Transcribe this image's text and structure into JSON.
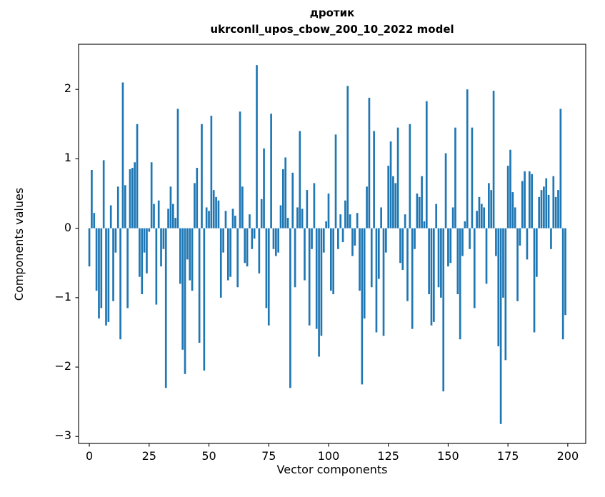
{
  "title_line1": "дротик",
  "title_line2": "ukrconll_upos_cbow_200_10_2022 model",
  "chart_data": {
    "type": "bar",
    "title": "дротик",
    "subtitle": "ukrconll_upos_cbow_200_10_2022 model",
    "xlabel": "Vector components",
    "ylabel": "Components values",
    "x_ticks": [
      0,
      25,
      50,
      75,
      100,
      125,
      150,
      175,
      200
    ],
    "y_ticks": [
      2,
      1,
      0,
      -1,
      -2,
      -3
    ],
    "xlim": [
      -4.5,
      207.5
    ],
    "ylim": [
      -3.1,
      2.65
    ],
    "grid": false,
    "legend": "none",
    "bar_color": "#1f77b4",
    "axis_color": "#000000",
    "n_components": 200,
    "values": [
      -0.55,
      0.84,
      0.22,
      -0.9,
      -1.3,
      -1.15,
      0.98,
      -1.4,
      -1.35,
      0.33,
      -1.05,
      -0.35,
      0.6,
      -1.6,
      2.1,
      0.62,
      -1.15,
      0.85,
      0.87,
      0.95,
      1.5,
      -0.7,
      -0.95,
      -0.35,
      -0.65,
      -0.05,
      0.95,
      0.35,
      -1.1,
      0.4,
      -0.55,
      -0.3,
      -2.3,
      0.28,
      0.6,
      0.35,
      0.15,
      1.72,
      -0.8,
      -1.75,
      -2.1,
      -0.45,
      -0.75,
      -0.9,
      0.65,
      0.87,
      -1.65,
      1.5,
      -2.05,
      0.3,
      0.25,
      1.62,
      0.55,
      0.45,
      0.4,
      -1.0,
      -0.35,
      0.25,
      -0.75,
      -0.7,
      0.28,
      0.18,
      -0.85,
      1.68,
      0.6,
      -0.5,
      -0.55,
      0.2,
      -0.3,
      -0.15,
      2.35,
      -0.65,
      0.42,
      1.15,
      -1.15,
      -1.4,
      1.65,
      -0.3,
      -0.4,
      -0.35,
      0.33,
      0.85,
      1.02,
      0.15,
      -2.3,
      0.8,
      -0.85,
      0.3,
      1.4,
      0.28,
      -0.75,
      0.55,
      -1.4,
      -0.3,
      0.65,
      -1.45,
      -1.85,
      -1.55,
      -0.35,
      0.1,
      0.5,
      -0.9,
      -0.95,
      1.35,
      -0.3,
      0.2,
      -0.2,
      0.4,
      2.05,
      0.2,
      -0.4,
      -0.25,
      0.22,
      -0.9,
      -2.25,
      -1.3,
      0.6,
      1.88,
      -0.85,
      1.4,
      -1.5,
      -0.73,
      0.3,
      -1.55,
      -0.35,
      0.9,
      1.25,
      0.75,
      0.65,
      1.45,
      -0.5,
      -0.6,
      0.2,
      -1.05,
      1.5,
      -1.45,
      -0.3,
      0.5,
      0.45,
      0.75,
      0.1,
      1.83,
      -0.95,
      -1.4,
      -1.35,
      0.35,
      -0.85,
      -1.0,
      -2.35,
      1.08,
      -0.55,
      -0.5,
      0.3,
      1.45,
      -0.95,
      -1.6,
      -0.4,
      0.1,
      2.0,
      -0.3,
      1.45,
      -1.15,
      0.25,
      0.45,
      0.35,
      0.3,
      -0.8,
      0.65,
      0.55,
      1.98,
      -0.4,
      -1.7,
      -2.82,
      -1.0,
      -1.9,
      0.9,
      1.13,
      0.52,
      0.3,
      -1.05,
      -0.25,
      0.68,
      0.82,
      -0.45,
      0.82,
      0.78,
      -1.5,
      -0.7,
      0.45,
      0.55,
      0.6,
      0.72,
      0.48,
      -0.3,
      0.75,
      0.45,
      0.55,
      1.72,
      -1.6,
      -1.25
    ]
  }
}
